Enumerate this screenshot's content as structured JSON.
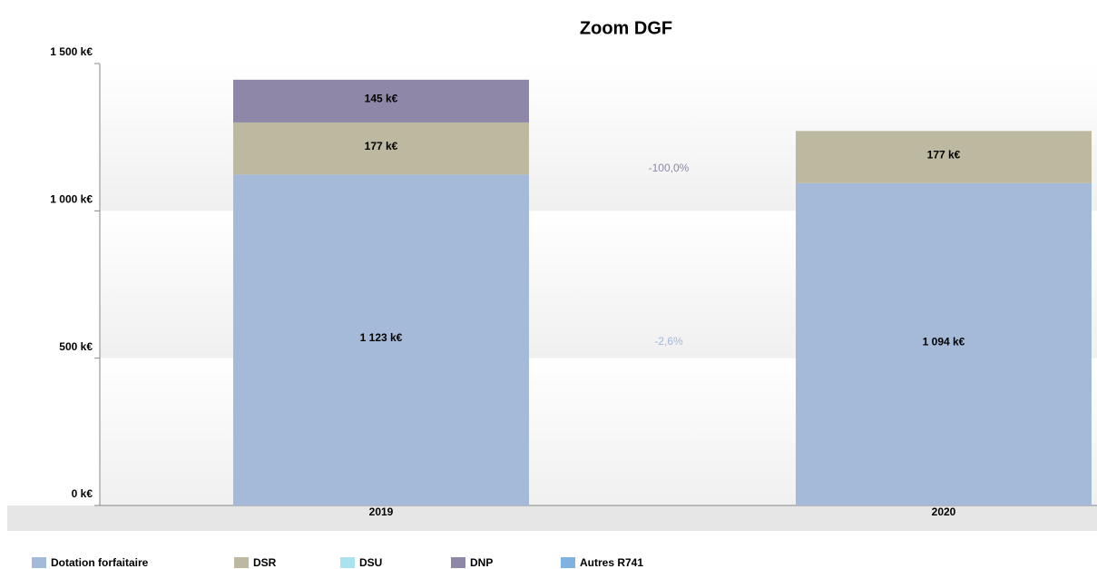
{
  "chart_data": {
    "type": "stacked_bar",
    "title": "Zoom DGF",
    "categories": [
      "2019",
      "2020"
    ],
    "series": [
      {
        "name": "Dotation forfaitaire",
        "color": "#a5b9d9",
        "values": [
          1123,
          1094
        ],
        "value_labels": [
          "1 123 k€",
          "1 094 k€"
        ]
      },
      {
        "name": "DSR",
        "color": "#bdb9a0",
        "values": [
          177,
          177
        ],
        "value_labels": [
          "177 k€",
          "177 k€"
        ]
      },
      {
        "name": "DSU",
        "color": "#a9e3f0",
        "values": [
          0,
          0
        ],
        "value_labels": [
          null,
          null
        ]
      },
      {
        "name": "DNP",
        "color": "#8f87a8",
        "values": [
          145,
          0
        ],
        "value_labels": [
          "145 k€",
          null
        ]
      },
      {
        "name": "Autres R741",
        "color": "#7fb2e0",
        "values": [
          0,
          0
        ],
        "value_labels": [
          null,
          null
        ]
      }
    ],
    "annotations": [
      {
        "text": "-100,0%",
        "color": "#8e87aa"
      },
      {
        "text": "-2,6%",
        "color": "#a4b8d8"
      }
    ],
    "ylim": [
      0,
      1500
    ],
    "yticks": [
      {
        "value": 0,
        "label": "0 k€"
      },
      {
        "value": 500,
        "label": "500 k€"
      },
      {
        "value": 1000,
        "label": "1 000 k€"
      },
      {
        "value": 1500,
        "label": "1 500 k€"
      }
    ],
    "grid": true
  }
}
